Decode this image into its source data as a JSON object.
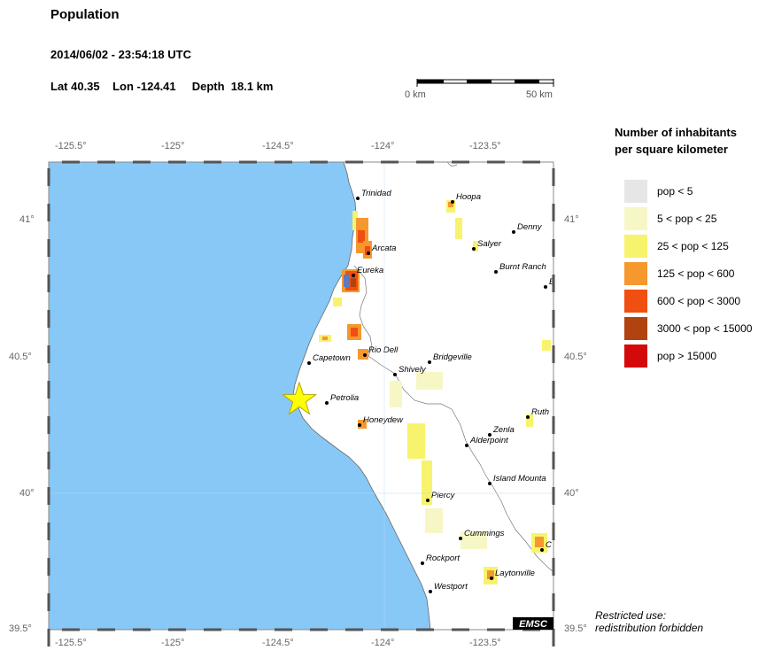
{
  "title": "Population",
  "datetime": "2014/06/02 - 23:54:18 UTC",
  "location": {
    "lat_label": "Lat 40.35",
    "lon_label": "Lon -124.41",
    "depth_label": "Depth  18.1 km",
    "lat": 40.35,
    "lon": -124.41
  },
  "scale": {
    "start_label": "0 km",
    "end_label": "50 km"
  },
  "axes": {
    "lon_ticks": [
      "-125.5°",
      "-125°",
      "-124.5°",
      "-124°",
      "-123.5°"
    ],
    "lat_ticks": [
      "41°",
      "40.5°",
      "40°",
      "39.5°"
    ]
  },
  "legend": {
    "title_line1": "Number of inhabitants",
    "title_line2": "per square kilometer",
    "items": [
      {
        "label": "pop < 5",
        "color": "#e6e6e6"
      },
      {
        "label": "5 < pop < 25",
        "color": "#f7f7c6"
      },
      {
        "label": "25 < pop < 125",
        "color": "#f8f36c"
      },
      {
        "label": "125 < pop < 600",
        "color": "#f5982e"
      },
      {
        "label": "600 < pop < 3000",
        "color": "#f14e12"
      },
      {
        "label": "3000 < pop < 15000",
        "color": "#b0430f"
      },
      {
        "label": "pop > 15000",
        "color": "#d40a0a"
      }
    ]
  },
  "cities": [
    "Trinidad",
    "Hoopa",
    "Denny",
    "Arcata",
    "Salyer",
    "Eureka",
    "Burnt Ranch",
    "B",
    "Rio Dell",
    "Capetown",
    "Bridgeville",
    "Shively",
    "Petrolia",
    "Ruth",
    "Honeydew",
    "Zenla",
    "Alderpoint",
    "Island Mounta",
    "Piercy",
    "Cummings",
    "C",
    "Rockport",
    "Laytonville",
    "Westport"
  ],
  "colors": {
    "ocean": "#87c8f7",
    "land": "#ffffff",
    "marker": "#ffff00"
  },
  "logo": "EMSC",
  "restricted_line1": "Restricted use:",
  "restricted_line2": "redistribution forbidden"
}
